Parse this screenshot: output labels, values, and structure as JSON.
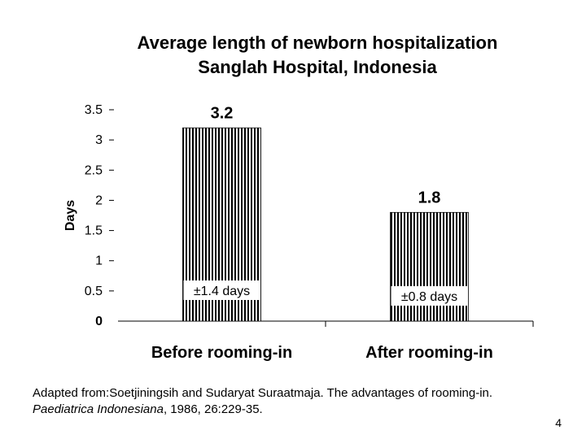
{
  "chart_data": {
    "type": "bar",
    "title_line1": "Average length of newborn hospitalization",
    "title_line2": "Sanglah Hospital, Indonesia",
    "ylabel": "Days",
    "xlabel": "",
    "ylim": [
      0,
      3.5
    ],
    "yticks": [
      "0",
      "0.5",
      "1",
      "1.5",
      "2",
      "2.5",
      "3",
      "3.5"
    ],
    "categories": [
      "Before rooming-in",
      "After rooming-in"
    ],
    "values": [
      3.2,
      1.8
    ],
    "value_labels": [
      "3.2",
      "1.8"
    ],
    "sd_labels": [
      "±1.4 days",
      "±0.8 days"
    ],
    "bar_pattern": "vertical-stripes",
    "grid": false,
    "legend": "none"
  },
  "citation": {
    "line1": "Adapted from:Soetjiningsih and Sudaryat Suraatmaja. The advantages of rooming-in.",
    "journal": "Paediatrica Indonesiana",
    "rest": ", 1986, 26:229-35."
  },
  "page_number": "4"
}
